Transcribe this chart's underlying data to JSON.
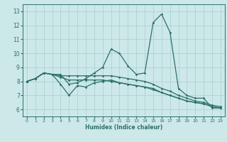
{
  "title": "",
  "xlabel": "Humidex (Indice chaleur)",
  "bg_color": "#cce8e8",
  "grid_color": "#aacece",
  "line_color": "#2d7068",
  "xlim": [
    -0.5,
    23.5
  ],
  "ylim": [
    5.5,
    13.5
  ],
  "xticks": [
    0,
    1,
    2,
    3,
    4,
    5,
    6,
    7,
    8,
    9,
    10,
    11,
    12,
    13,
    14,
    15,
    16,
    17,
    18,
    19,
    20,
    21,
    22,
    23
  ],
  "yticks": [
    6,
    7,
    8,
    9,
    10,
    11,
    12,
    13
  ],
  "series": [
    {
      "x": [
        0,
        1,
        2,
        3,
        4,
        5,
        6,
        7,
        8,
        9,
        10,
        11,
        12,
        13,
        14,
        15,
        16,
        17,
        18,
        19,
        20,
        21,
        22,
        23
      ],
      "y": [
        8.0,
        8.2,
        8.6,
        8.5,
        8.5,
        7.8,
        7.9,
        8.2,
        8.6,
        9.0,
        10.3,
        10.0,
        9.1,
        8.5,
        8.6,
        12.2,
        12.8,
        11.5,
        7.5,
        7.0,
        6.8,
        6.8,
        6.1,
        6.1
      ]
    },
    {
      "x": [
        0,
        1,
        2,
        3,
        4,
        5,
        6,
        7,
        8,
        9,
        10,
        11,
        12,
        13,
        14,
        15,
        16,
        17,
        18,
        19,
        20,
        21,
        22,
        23
      ],
      "y": [
        8.0,
        8.2,
        8.6,
        8.5,
        8.4,
        8.4,
        8.4,
        8.4,
        8.4,
        8.4,
        8.4,
        8.3,
        8.2,
        8.1,
        8.0,
        7.8,
        7.5,
        7.3,
        7.0,
        6.8,
        6.6,
        6.5,
        6.3,
        6.2
      ]
    },
    {
      "x": [
        0,
        1,
        2,
        3,
        4,
        5,
        6,
        7,
        8,
        9,
        10,
        11,
        12,
        13,
        14,
        15,
        16,
        17,
        18,
        19,
        20,
        21,
        22,
        23
      ],
      "y": [
        8.0,
        8.2,
        8.6,
        8.5,
        8.3,
        8.1,
        8.1,
        8.1,
        8.1,
        8.1,
        8.0,
        7.9,
        7.8,
        7.7,
        7.6,
        7.4,
        7.2,
        7.0,
        6.8,
        6.6,
        6.5,
        6.4,
        6.2,
        6.1
      ]
    },
    {
      "x": [
        0,
        1,
        2,
        3,
        4,
        5,
        6,
        7,
        8,
        9,
        10,
        11,
        12,
        13,
        14,
        15,
        16,
        17,
        18,
        19,
        20,
        21,
        22,
        23
      ],
      "y": [
        8.0,
        8.2,
        8.6,
        8.5,
        7.8,
        7.0,
        7.7,
        7.6,
        7.9,
        8.0,
        8.1,
        7.9,
        7.8,
        7.7,
        7.6,
        7.5,
        7.2,
        7.0,
        6.8,
        6.6,
        6.5,
        6.4,
        6.2,
        6.1
      ]
    }
  ]
}
